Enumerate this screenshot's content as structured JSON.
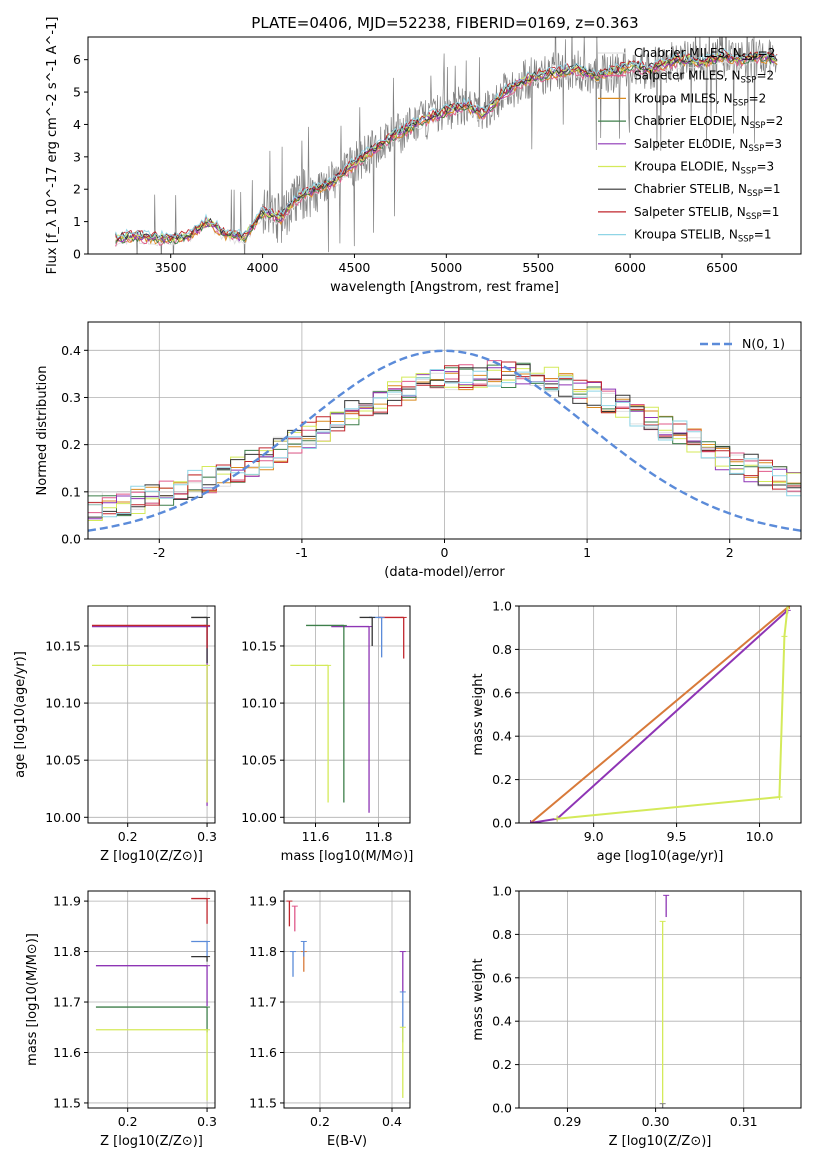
{
  "figure": {
    "title": "PLATE=0406, MJD=52238, FIBERID=0169, z=0.363",
    "legend_entries": [
      {
        "label": "Chabrier MILES, N",
        "sub": "SSP",
        "suffix": "=2",
        "color": "#e0e0e0"
      },
      {
        "label": "Salpeter MILES, N",
        "sub": "SSP",
        "suffix": "=2",
        "color": "#e05a8a"
      },
      {
        "label": "Kroupa MILES, N",
        "sub": "SSP",
        "suffix": "=2",
        "color": "#d98a1f"
      },
      {
        "label": "Chabrier ELODIE, N",
        "sub": "SSP",
        "suffix": "=2",
        "color": "#3e7f4a"
      },
      {
        "label": "Salpeter ELODIE, N",
        "sub": "SSP",
        "suffix": "=3",
        "color": "#8e35b5"
      },
      {
        "label": "Kroupa ELODIE, N",
        "sub": "SSP",
        "suffix": "=3",
        "color": "#d4ea5a"
      },
      {
        "label": "Chabrier STELIB, N",
        "sub": "SSP",
        "suffix": "=1",
        "color": "#333333"
      },
      {
        "label": "Salpeter STELIB, N",
        "sub": "SSP",
        "suffix": "=1",
        "color": "#c0262d"
      },
      {
        "label": "Kroupa STELIB, N",
        "sub": "SSP",
        "suffix": "=1",
        "color": "#8fd5e6"
      }
    ],
    "colors": {
      "data": "#808080",
      "grid": "#b0b0b0",
      "normal": "#5b8bd9",
      "fit": "#d87a3a"
    }
  },
  "chart_data": [
    {
      "id": "spectrum",
      "type": "line",
      "xlabel": "wavelength [Angstrom, rest frame]",
      "ylabel": "Flux [f_λ 10^-17 erg cm^-2 s^-1 A^-1]",
      "xlim": [
        3050,
        6930
      ],
      "ylim": [
        0,
        6.7
      ],
      "xticks": [
        3500,
        4000,
        4500,
        5000,
        5500,
        6000,
        6500
      ],
      "yticks": [
        0,
        1,
        2,
        3,
        4,
        5,
        6
      ],
      "grid": false,
      "legend_position": "top-right",
      "x_range_data": [
        3200,
        6800
      ],
      "model_points": [
        [
          3200,
          0.45
        ],
        [
          3300,
          0.55
        ],
        [
          3400,
          0.5
        ],
        [
          3500,
          0.45
        ],
        [
          3600,
          0.55
        ],
        [
          3700,
          1.0
        ],
        [
          3800,
          0.6
        ],
        [
          3900,
          0.5
        ],
        [
          4000,
          1.3
        ],
        [
          4100,
          1.1
        ],
        [
          4200,
          1.8
        ],
        [
          4300,
          2.0
        ],
        [
          4400,
          2.3
        ],
        [
          4500,
          2.8
        ],
        [
          4600,
          3.2
        ],
        [
          4700,
          3.6
        ],
        [
          4800,
          3.9
        ],
        [
          4900,
          4.2
        ],
        [
          5000,
          4.4
        ],
        [
          5100,
          4.6
        ],
        [
          5200,
          4.3
        ],
        [
          5300,
          4.9
        ],
        [
          5400,
          5.3
        ],
        [
          5500,
          5.5
        ],
        [
          5600,
          5.6
        ],
        [
          5700,
          5.7
        ],
        [
          5800,
          5.5
        ],
        [
          5900,
          5.6
        ],
        [
          6000,
          5.8
        ],
        [
          6100,
          5.7
        ],
        [
          6200,
          5.9
        ],
        [
          6300,
          6.0
        ],
        [
          6400,
          5.9
        ],
        [
          6500,
          6.1
        ],
        [
          6600,
          6.0
        ],
        [
          6700,
          6.1
        ],
        [
          6800,
          6.0
        ]
      ]
    },
    {
      "id": "residuals",
      "type": "step",
      "xlabel": "(data-model)/error",
      "ylabel": "Normed distribution",
      "xlim": [
        -2.5,
        2.5
      ],
      "ylim": [
        0,
        0.46
      ],
      "xticks": [
        -2,
        -1,
        0,
        1,
        2
      ],
      "yticks": [
        0.0,
        0.1,
        0.2,
        0.3,
        0.4
      ],
      "grid": true,
      "legend_position": "top-right",
      "legend_label": "N(0, 1)",
      "bins": 50
    },
    {
      "id": "age_vs_Z",
      "type": "errorbar",
      "xlabel": "Z [log10(Z/Z⊙)]",
      "ylabel": "age [log10(age/yr)]",
      "xlim": [
        0.15,
        0.31
      ],
      "ylim": [
        9.995,
        10.185
      ],
      "xticks": [
        0.2,
        0.3
      ],
      "yticks": [
        10.0,
        10.05,
        10.1,
        10.15
      ],
      "grid": true,
      "points": [
        {
          "x": 0.3,
          "y": 10.167,
          "xerr_lo": 0.145,
          "yerr_lo": 0.157,
          "color": "#8e35b5"
        },
        {
          "x": 0.3,
          "y": 10.133,
          "xerr_lo": 0.145,
          "yerr_lo": 0.12,
          "color": "#d4ea5a"
        },
        {
          "x": 0.3,
          "y": 10.175,
          "xerr_lo": 0.02,
          "yerr_lo": 0.04,
          "color": "#333333"
        },
        {
          "x": 0.3,
          "y": 10.168,
          "xerr_lo": 0.145,
          "yerr_lo": 0.02,
          "color": "#c0262d"
        }
      ]
    },
    {
      "id": "age_vs_mass",
      "type": "errorbar",
      "xlabel": "mass [log10(M/M⊙)]",
      "ylabel": "",
      "xlim": [
        11.5,
        11.9
      ],
      "ylim": [
        9.995,
        10.185
      ],
      "xticks": [
        11.6,
        11.8
      ],
      "yticks": [
        10.0,
        10.05,
        10.1,
        10.15
      ],
      "grid": true,
      "points": [
        {
          "x": 11.77,
          "y": 10.167,
          "xerr_lo": 0.12,
          "yerr_lo": 0.163,
          "color": "#8e35b5"
        },
        {
          "x": 11.64,
          "y": 10.133,
          "xerr_lo": 0.12,
          "yerr_lo": 0.12,
          "color": "#d4ea5a"
        },
        {
          "x": 11.69,
          "y": 10.168,
          "xerr_lo": 0.12,
          "yerr_lo": 0.155,
          "color": "#3e7f4a"
        },
        {
          "x": 11.88,
          "y": 10.175,
          "xerr_lo": 0.08,
          "yerr_lo": 0.036,
          "color": "#c0262d"
        },
        {
          "x": 11.81,
          "y": 10.175,
          "xerr_lo": 0.04,
          "yerr_lo": 0.035,
          "color": "#5b8bd9"
        },
        {
          "x": 11.78,
          "y": 10.175,
          "xerr_lo": 0.04,
          "yerr_lo": 0.025,
          "color": "#333333"
        }
      ]
    },
    {
      "id": "cum_mass_weight_age",
      "type": "line",
      "xlabel": "age [log10(age/yr)]",
      "ylabel": "mass weight",
      "xlim": [
        8.55,
        10.25
      ],
      "ylim": [
        0,
        1.0
      ],
      "xticks": [
        9.0,
        9.5,
        10.0
      ],
      "yticks": [
        0.0,
        0.2,
        0.4,
        0.6,
        0.8,
        1.0
      ],
      "grid": true,
      "series": [
        {
          "color": "#d87a3a",
          "x": [
            8.62,
            10.18
          ],
          "y": [
            0.0,
            1.0
          ]
        },
        {
          "color": "#8e35b5",
          "x": [
            8.62,
            8.78,
            10.17
          ],
          "y": [
            0.0,
            0.02,
            0.98
          ]
        },
        {
          "color": "#d4ea5a",
          "x": [
            8.78,
            10.12,
            10.15,
            10.17
          ],
          "y": [
            0.02,
            0.12,
            0.86,
            1.0
          ]
        }
      ]
    },
    {
      "id": "mass_vs_Z",
      "type": "errorbar",
      "xlabel": "Z [log10(Z/Z⊙)]",
      "ylabel": "mass [log10(M/M⊙)]",
      "xlim": [
        0.15,
        0.31
      ],
      "ylim": [
        11.49,
        11.92
      ],
      "xticks": [
        0.2,
        0.3
      ],
      "yticks": [
        11.5,
        11.6,
        11.7,
        11.8,
        11.9
      ],
      "grid": true,
      "points": [
        {
          "x": 0.3,
          "y": 11.772,
          "xerr_lo": 0.14,
          "yerr_lo": 0.08,
          "color": "#8e35b5"
        },
        {
          "x": 0.3,
          "y": 11.69,
          "xerr_lo": 0.14,
          "yerr_lo": 0.05,
          "color": "#3e7f4a"
        },
        {
          "x": 0.3,
          "y": 11.645,
          "xerr_lo": 0.14,
          "yerr_lo": 0.14,
          "color": "#d4ea5a"
        },
        {
          "x": 0.3,
          "y": 11.905,
          "xerr_lo": 0.02,
          "yerr_lo": 0.05,
          "color": "#c0262d"
        },
        {
          "x": 0.3,
          "y": 11.82,
          "xerr_lo": 0.02,
          "yerr_lo": 0.03,
          "color": "#5b8bd9"
        },
        {
          "x": 0.3,
          "y": 11.79,
          "xerr_lo": 0.02,
          "yerr_lo": 0.01,
          "color": "#333333"
        }
      ]
    },
    {
      "id": "mass_vs_ebv",
      "type": "errorbar",
      "xlabel": "E(B-V)",
      "ylabel": "",
      "xlim": [
        0.1,
        0.45
      ],
      "ylim": [
        11.49,
        11.92
      ],
      "xticks": [
        0.2,
        0.4
      ],
      "yticks": [
        11.5,
        11.6,
        11.7,
        11.8,
        11.9
      ],
      "grid": true,
      "points": [
        {
          "x": 0.115,
          "y": 11.9,
          "yerr_lo": 0.05,
          "color": "#c0262d"
        },
        {
          "x": 0.13,
          "y": 11.89,
          "yerr_lo": 0.05,
          "color": "#e05a8a"
        },
        {
          "x": 0.125,
          "y": 11.8,
          "yerr_lo": 0.05,
          "color": "#5b8bd9"
        },
        {
          "x": 0.155,
          "y": 11.8,
          "yerr_lo": 0.04,
          "color": "#d87a3a"
        },
        {
          "x": 0.155,
          "y": 11.82,
          "yerr_lo": 0.03,
          "color": "#5b8bd9"
        },
        {
          "x": 0.43,
          "y": 11.8,
          "yerr_lo": 0.08,
          "color": "#8e35b5"
        },
        {
          "x": 0.43,
          "y": 11.72,
          "yerr_lo": 0.1,
          "color": "#5b8bd9"
        },
        {
          "x": 0.43,
          "y": 11.65,
          "yerr_lo": 0.14,
          "color": "#d4ea5a"
        }
      ]
    },
    {
      "id": "cum_mass_weight_Z",
      "type": "errorbar",
      "xlabel": "Z [log10(Z/Z⊙)]",
      "ylabel": "mass weight",
      "xlim": [
        0.2845,
        0.3165
      ],
      "ylim": [
        0,
        1.0
      ],
      "xticks": [
        0.29,
        0.3,
        0.31
      ],
      "yticks": [
        0.0,
        0.2,
        0.4,
        0.6,
        0.8,
        1.0
      ],
      "grid": true,
      "points": [
        {
          "x": 0.3012,
          "y": 0.98,
          "yerr_lo": 0.1,
          "color": "#8e35b5"
        },
        {
          "x": 0.3008,
          "y": 0.86,
          "yerr_lo": 0.85,
          "color": "#d4ea5a"
        },
        {
          "x": 0.3008,
          "y": 0.02,
          "yerr_lo": 0.02,
          "color": "#808080"
        }
      ]
    }
  ]
}
